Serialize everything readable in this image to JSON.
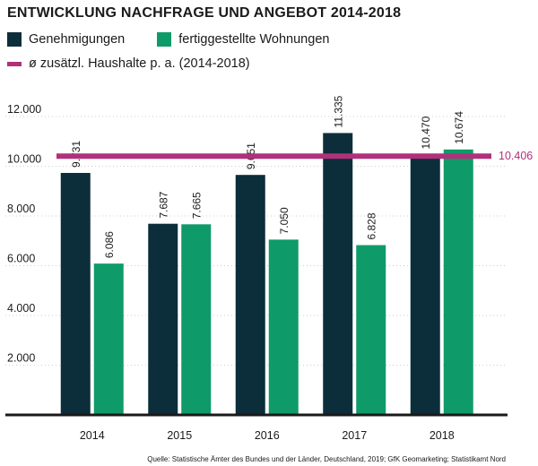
{
  "title": "ENTWICKLUNG NACHFRAGE UND ANGEBOT 2014-2018",
  "legend": {
    "series1": "Genehmigungen",
    "series2": "fertiggestellte Wohnungen",
    "line": "ø zusätzl. Haushalte p. a. (2014-2018)"
  },
  "source": "Quelle: Statistische Ämter des Bundes und der Länder, Deutschland, 2019; GfK Geomarketing; Statistikamt Nord",
  "colors": {
    "series1": "#0b2e3a",
    "series2": "#0f9b69",
    "line": "#b0317a",
    "grid": "#cfcfcf"
  },
  "chart_data": {
    "type": "bar",
    "title": "ENTWICKLUNG NACHFRAGE UND ANGEBOT 2014-2018",
    "categories": [
      "2014",
      "2015",
      "2016",
      "2017",
      "2018"
    ],
    "series": [
      {
        "name": "Genehmigungen",
        "values": [
          9731,
          7687,
          9651,
          11335,
          10470
        ],
        "labels": [
          "9.731",
          "7.687",
          "9.651",
          "11.335",
          "10.470"
        ]
      },
      {
        "name": "fertiggestellte Wohnungen",
        "values": [
          6086,
          7665,
          7050,
          6828,
          10674
        ],
        "labels": [
          "6.086",
          "7.665",
          "7.050",
          "6.828",
          "10.674"
        ]
      }
    ],
    "reference_line": {
      "name": "ø zusätzl. Haushalte p. a. (2014-2018)",
      "value": 10406,
      "label": "10.406"
    },
    "ylim": [
      0,
      12000
    ],
    "yticks": [
      2000,
      4000,
      6000,
      8000,
      10000,
      12000
    ],
    "ytick_labels": [
      "2.000",
      "4.000",
      "6.000",
      "8.000",
      "10.000",
      "12.000"
    ],
    "xlabel": "",
    "ylabel": "",
    "grid": true,
    "legend_position": "top"
  }
}
